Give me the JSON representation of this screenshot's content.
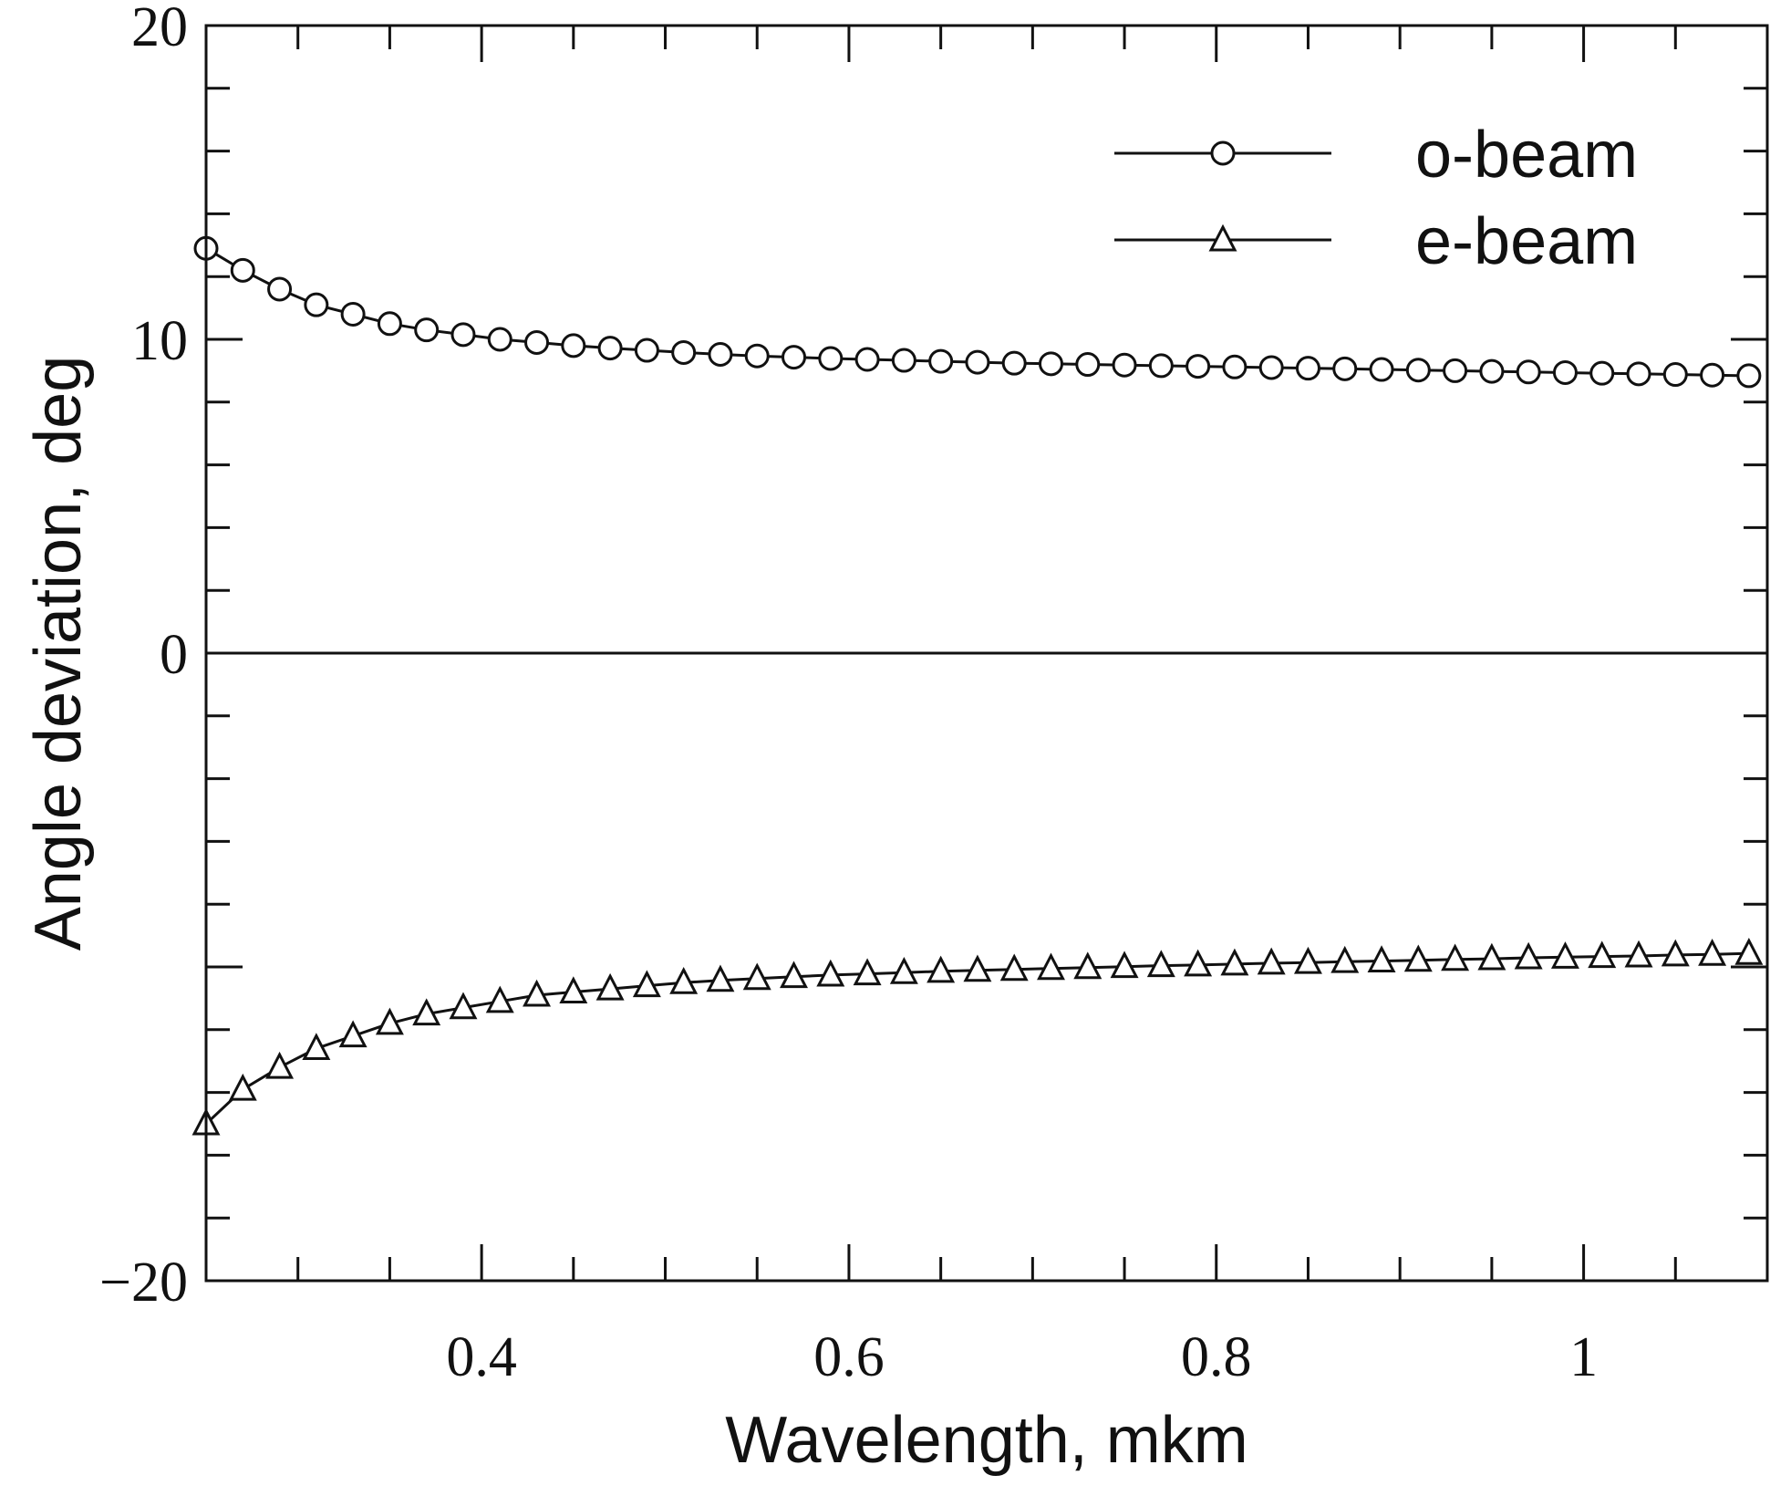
{
  "chart_data": {
    "type": "line",
    "title": "",
    "xlabel": "Wavelength, mkm",
    "ylabel": "Angle deviation, deg",
    "xlim": [
      0.25,
      1.1
    ],
    "ylim": [
      -20,
      20
    ],
    "x_ticks": [
      0.4,
      0.6,
      0.8,
      1.0
    ],
    "x_tick_labels": [
      "0.4",
      "0.6",
      "0.8",
      "1"
    ],
    "y_ticks": [
      -20,
      0,
      10,
      20
    ],
    "y_tick_labels": [
      "−20",
      "0",
      "10",
      "20"
    ],
    "legend_position": "top-right",
    "grid": false,
    "zero_line": true,
    "x": [
      0.25,
      0.27,
      0.29,
      0.31,
      0.33,
      0.35,
      0.37,
      0.39,
      0.41,
      0.43,
      0.45,
      0.47,
      0.49,
      0.51,
      0.53,
      0.55,
      0.57,
      0.59,
      0.61,
      0.63,
      0.65,
      0.67,
      0.69,
      0.71,
      0.73,
      0.75,
      0.77,
      0.79,
      0.81,
      0.83,
      0.85,
      0.87,
      0.89,
      0.91,
      0.93,
      0.95,
      0.97,
      0.99,
      1.01,
      1.03,
      1.05,
      1.07,
      1.09
    ],
    "series": [
      {
        "name": "o-beam",
        "marker": "circle",
        "values": [
          12.9,
          12.2,
          11.6,
          11.1,
          10.8,
          10.5,
          10.3,
          10.15,
          10.0,
          9.9,
          9.8,
          9.72,
          9.65,
          9.58,
          9.52,
          9.47,
          9.43,
          9.39,
          9.36,
          9.33,
          9.3,
          9.27,
          9.24,
          9.22,
          9.2,
          9.18,
          9.16,
          9.14,
          9.12,
          9.1,
          9.08,
          9.06,
          9.04,
          9.02,
          9.0,
          8.98,
          8.96,
          8.94,
          8.92,
          8.9,
          8.88,
          8.86,
          8.84
        ]
      },
      {
        "name": "e-beam",
        "marker": "triangle",
        "values": [
          -15.0,
          -13.9,
          -13.2,
          -12.6,
          -12.2,
          -11.8,
          -11.5,
          -11.3,
          -11.1,
          -10.9,
          -10.8,
          -10.7,
          -10.6,
          -10.5,
          -10.43,
          -10.37,
          -10.31,
          -10.26,
          -10.22,
          -10.18,
          -10.14,
          -10.11,
          -10.08,
          -10.05,
          -10.02,
          -9.99,
          -9.96,
          -9.94,
          -9.91,
          -9.88,
          -9.86,
          -9.83,
          -9.81,
          -9.79,
          -9.76,
          -9.74,
          -9.71,
          -9.69,
          -9.67,
          -9.65,
          -9.62,
          -9.6,
          -9.57
        ]
      }
    ]
  }
}
